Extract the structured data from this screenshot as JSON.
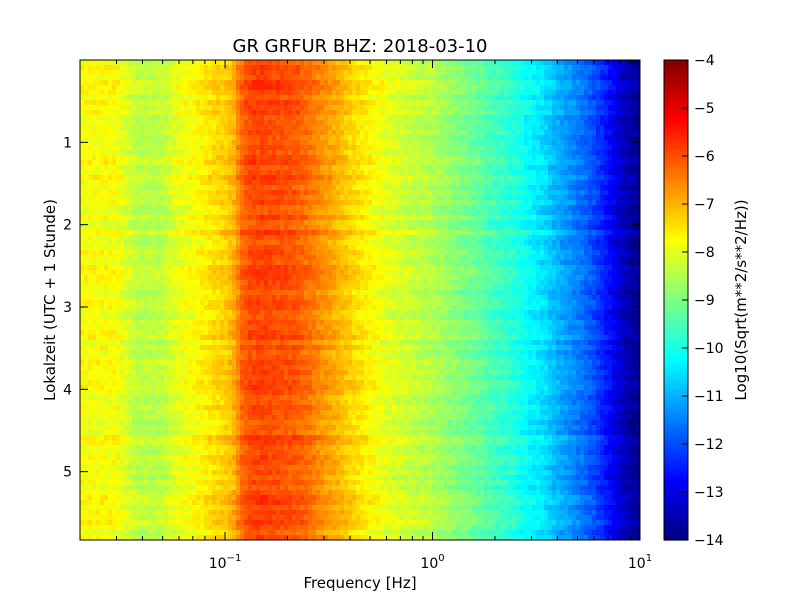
{
  "chart_data": {
    "type": "heatmap",
    "title": "GR GRFUR BHZ: 2018-03-10",
    "xlabel": "Frequency [Hz]",
    "ylabel": "Lokalzeit (UTC + 1 Stunde)",
    "colorbar_label": "Log10(Sqrt(m**2/s**2/Hz))",
    "x_scale": "log",
    "x_range": [
      0.02,
      10
    ],
    "y_range": [
      0,
      5.83
    ],
    "y_inverted": true,
    "color_range": [
      -14,
      -4
    ],
    "colormap": "jet",
    "grid": false,
    "x_ticks": [
      {
        "value": 0.1,
        "base": "10",
        "exp": "−1"
      },
      {
        "value": 1,
        "base": "10",
        "exp": "0"
      },
      {
        "value": 10,
        "base": "10",
        "exp": "1"
      }
    ],
    "y_ticks": [
      {
        "value": 1,
        "label": "1"
      },
      {
        "value": 2,
        "label": "2"
      },
      {
        "value": 3,
        "label": "3"
      },
      {
        "value": 4,
        "label": "4"
      },
      {
        "value": 5,
        "label": "5"
      }
    ],
    "colorbar_ticks": [
      {
        "value": -4,
        "label": "−4"
      },
      {
        "value": -5,
        "label": "−5"
      },
      {
        "value": -6,
        "label": "−6"
      },
      {
        "value": -7,
        "label": "−7"
      },
      {
        "value": -8,
        "label": "−8"
      },
      {
        "value": -9,
        "label": "−9"
      },
      {
        "value": -10,
        "label": "−10"
      },
      {
        "value": -11,
        "label": "−11"
      },
      {
        "value": -12,
        "label": "−12"
      },
      {
        "value": -13,
        "label": "−13"
      },
      {
        "value": -14,
        "label": "−14"
      }
    ],
    "spectrum_profile": {
      "frequencies": [
        0.02,
        0.03,
        0.038,
        0.05,
        0.058,
        0.07,
        0.08,
        0.09,
        0.1,
        0.11,
        0.12,
        0.13,
        0.15,
        0.18,
        0.22,
        0.26,
        0.3,
        0.35,
        0.4,
        0.5,
        0.6,
        0.8,
        1.0,
        1.3,
        1.6,
        2.0,
        2.5,
        3.0,
        3.5,
        4.0,
        5.0,
        6.0,
        7.0,
        8.0,
        9.0,
        10.0
      ],
      "values": [
        -7.8,
        -7.8,
        -8.4,
        -8.4,
        -8.0,
        -7.8,
        -7.6,
        -7.4,
        -7.3,
        -7.0,
        -6.3,
        -6.0,
        -5.9,
        -6.0,
        -6.1,
        -6.4,
        -6.7,
        -7.0,
        -7.3,
        -7.7,
        -8.0,
        -8.3,
        -8.5,
        -8.9,
        -9.2,
        -9.6,
        -9.9,
        -10.3,
        -10.6,
        -11.0,
        -11.5,
        -12.0,
        -12.6,
        -13.2,
        -13.6,
        -13.9
      ]
    }
  }
}
